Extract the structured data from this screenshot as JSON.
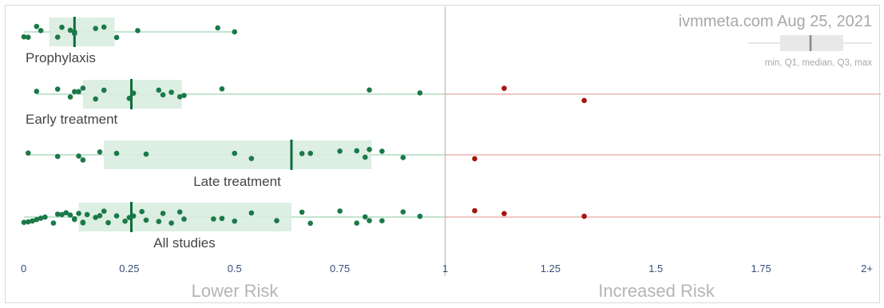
{
  "chart_data": {
    "type": "scatter",
    "watermark": "ivmmeta.com Aug 25, 2021",
    "legend_label": "min, Q1, median, Q3, max",
    "xlabel_left": "Lower Risk",
    "xlabel_right": "Increased Risk",
    "tick_labels": [
      "0",
      "0.25",
      "0.5",
      "0.75",
      "1",
      "1.25",
      "1.5",
      "1.75",
      "2+"
    ],
    "tick_values": [
      0,
      0.25,
      0.5,
      0.75,
      1,
      1.25,
      1.5,
      1.75,
      2
    ],
    "xlim": [
      0,
      2
    ],
    "colors": {
      "benefit_point": "#1a7a47",
      "harm_point": "#a5160e",
      "benefit_line": "#9fd3b4",
      "harm_line": "#e8a8a3",
      "box_fill": "#d9ece0",
      "median": "#0e6b3a",
      "label_text": "#444444",
      "tick_text": "#34507a",
      "axis_label": "#b5b5b5"
    },
    "series": [
      {
        "name": "Prophylaxis",
        "box": {
          "min": 0.0,
          "q1": 0.06,
          "median": 0.12,
          "q3": 0.215,
          "max": 0.5
        },
        "values": [
          0.0,
          0.01,
          0.03,
          0.04,
          0.08,
          0.09,
          0.11,
          0.12,
          0.12,
          0.17,
          0.19,
          0.22,
          0.27,
          0.46,
          0.5
        ]
      },
      {
        "name": "Early treatment",
        "box": {
          "min": 0.03,
          "q1": 0.14,
          "median": 0.255,
          "q3": 0.375,
          "max": 1.33
        },
        "values": [
          0.03,
          0.08,
          0.11,
          0.12,
          0.13,
          0.14,
          0.17,
          0.19,
          0.25,
          0.26,
          0.32,
          0.33,
          0.35,
          0.37,
          0.38,
          0.47,
          0.82,
          0.94,
          1.14,
          1.33
        ]
      },
      {
        "name": "Late treatment",
        "box": {
          "min": 0.01,
          "q1": 0.19,
          "median": 0.635,
          "q3": 0.825,
          "max": 1.07
        },
        "values": [
          0.01,
          0.08,
          0.13,
          0.14,
          0.18,
          0.22,
          0.29,
          0.5,
          0.54,
          0.66,
          0.68,
          0.75,
          0.79,
          0.81,
          0.82,
          0.85,
          0.9,
          1.07
        ]
      },
      {
        "name": "All studies",
        "box": {
          "min": 0.0,
          "q1": 0.13,
          "median": 0.255,
          "q3": 0.635,
          "max": 1.33
        },
        "values": [
          0.0,
          0.01,
          0.02,
          0.03,
          0.04,
          0.05,
          0.07,
          0.08,
          0.09,
          0.1,
          0.11,
          0.12,
          0.12,
          0.13,
          0.14,
          0.14,
          0.15,
          0.17,
          0.18,
          0.19,
          0.2,
          0.22,
          0.24,
          0.25,
          0.26,
          0.28,
          0.29,
          0.32,
          0.33,
          0.35,
          0.37,
          0.38,
          0.45,
          0.47,
          0.5,
          0.54,
          0.6,
          0.66,
          0.68,
          0.75,
          0.79,
          0.81,
          0.82,
          0.85,
          0.9,
          0.94,
          1.07,
          1.14,
          1.33
        ]
      }
    ]
  }
}
